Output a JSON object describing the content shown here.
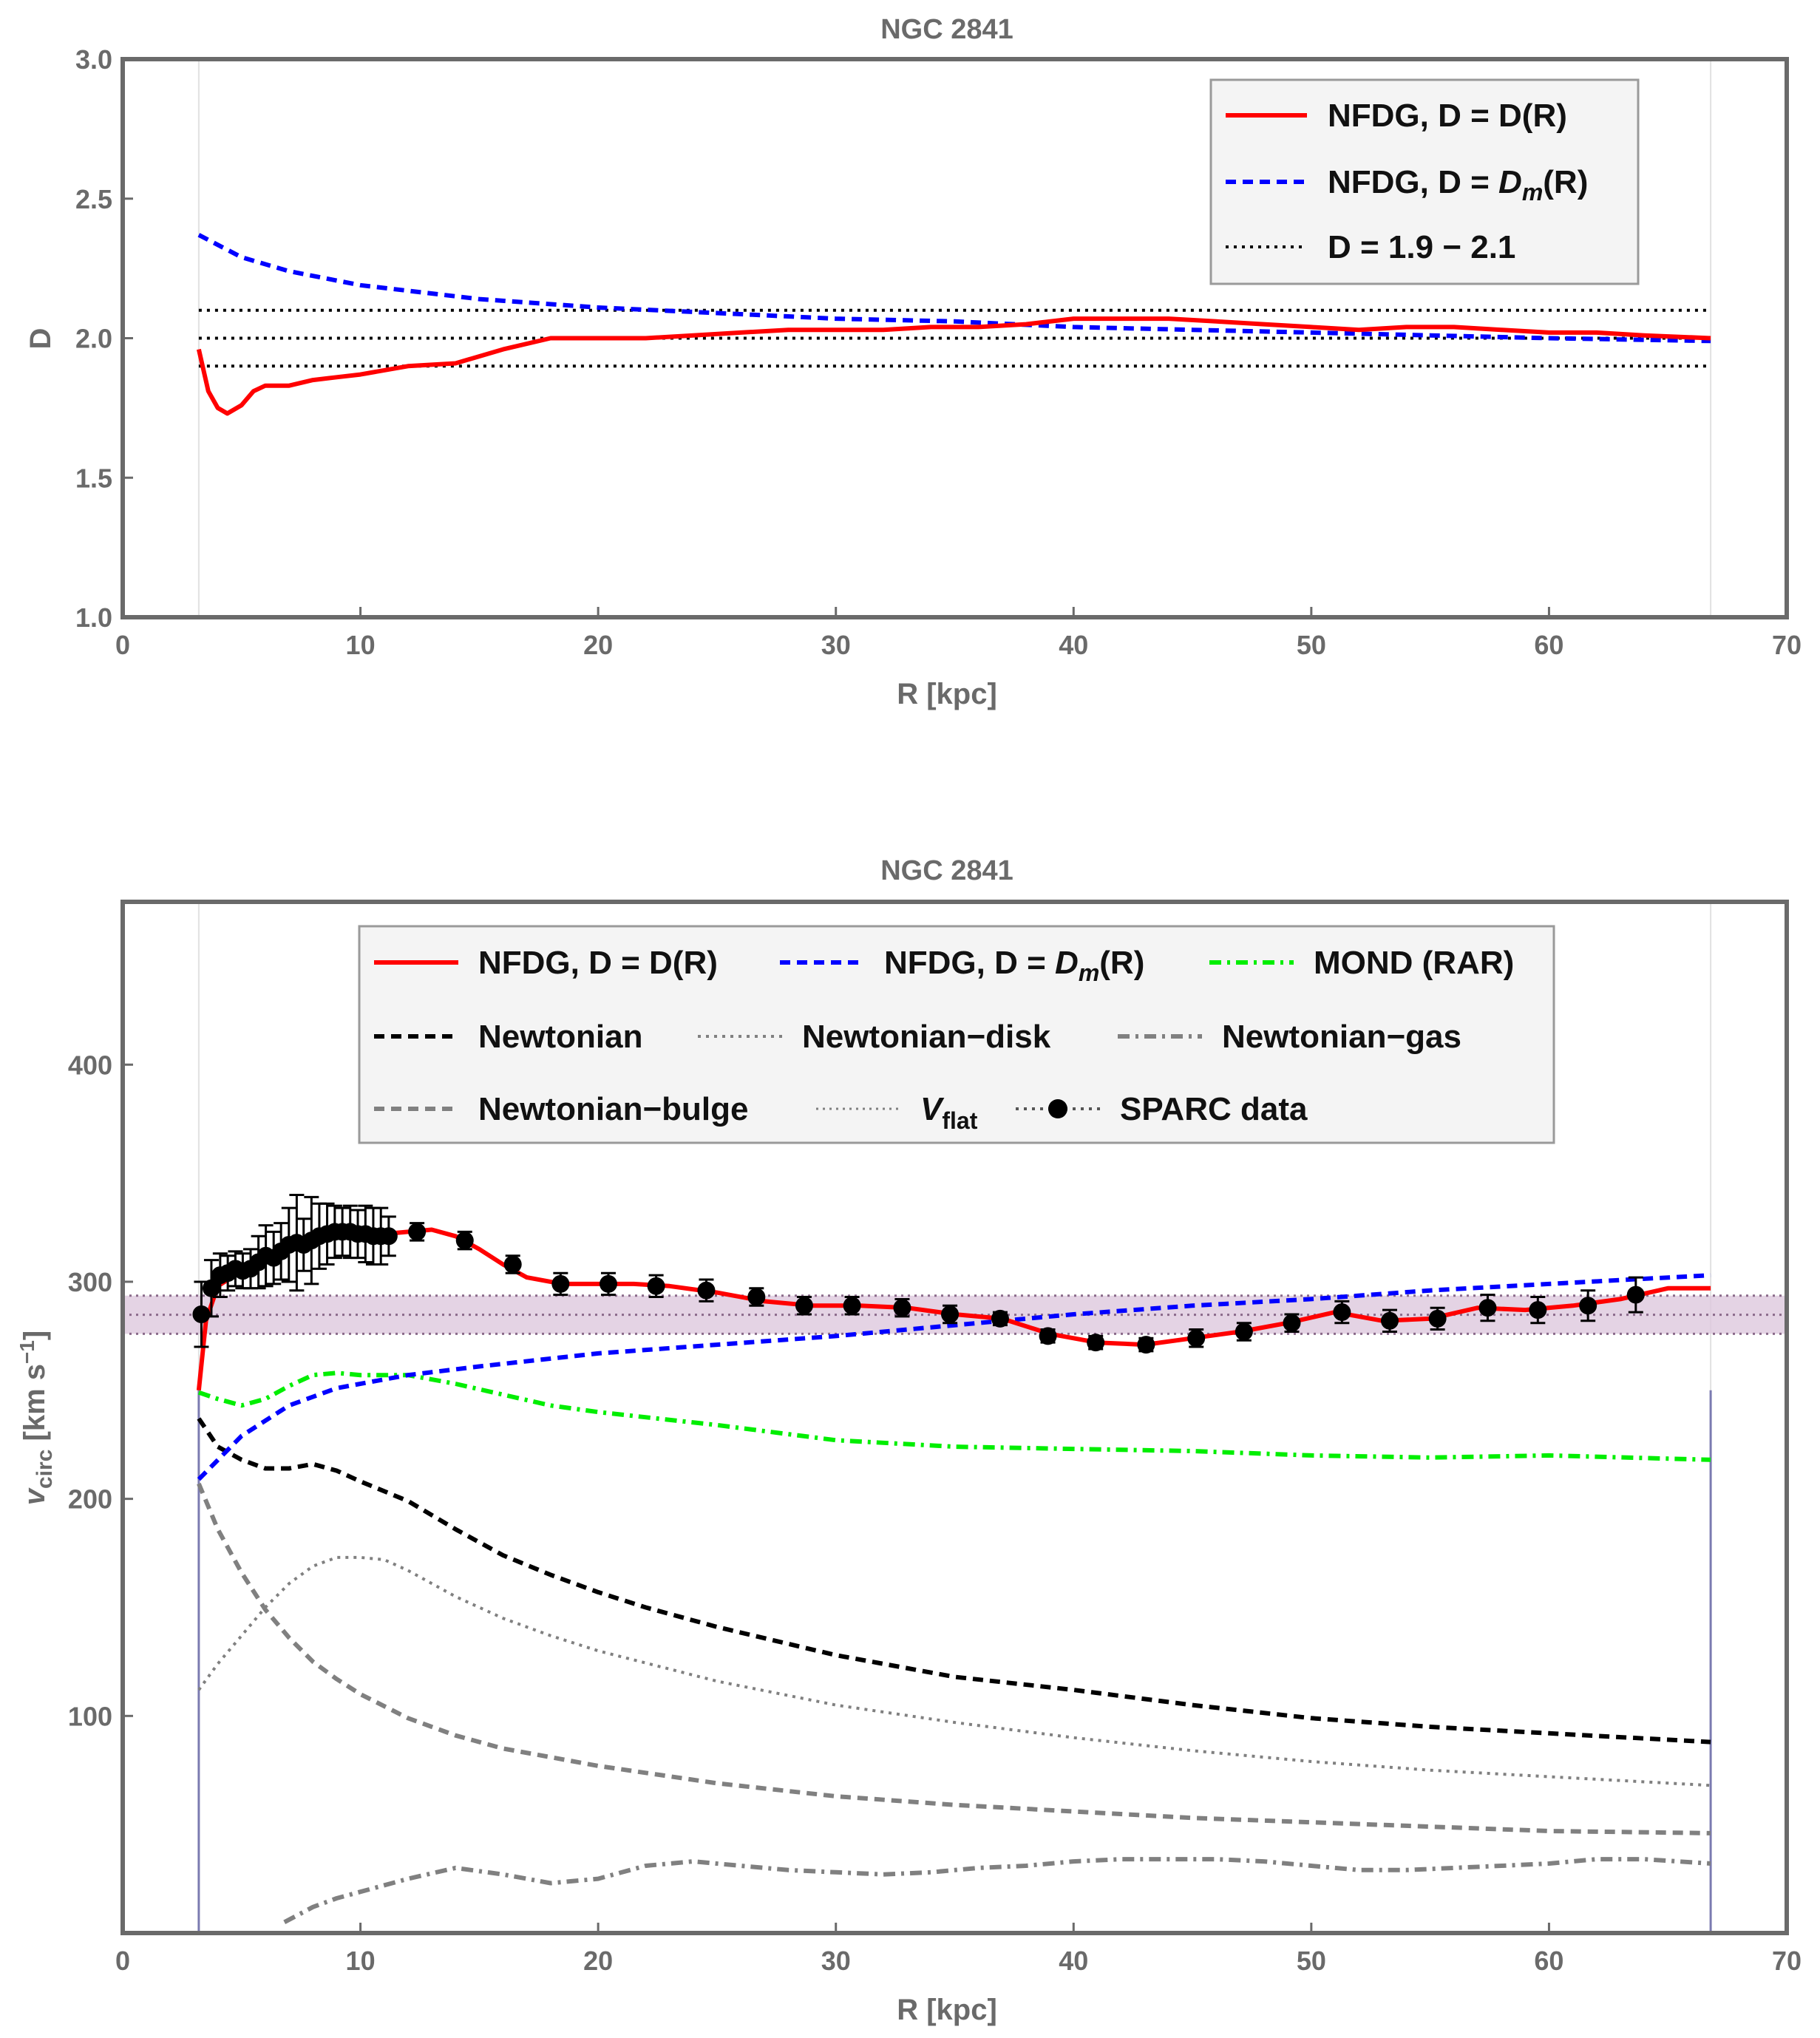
{
  "chart_data": [
    {
      "type": "line",
      "title": "NGC 2841",
      "xlabel": "R [kpc]",
      "ylabel": "D",
      "xlim": [
        0,
        70
      ],
      "ylim": [
        1.0,
        3.0
      ],
      "xticks": [
        "0",
        "10",
        "20",
        "30",
        "40",
        "50",
        "60",
        "70"
      ],
      "yticks": [
        "1.0",
        "1.5",
        "2.0",
        "2.5",
        "3.0"
      ],
      "grid": false,
      "legend_position": "top-right",
      "series": [
        {
          "name": "NFDG, D = D(R)",
          "style": "solid",
          "color": "#ff0000",
          "x": [
            3.2,
            3.6,
            4.0,
            4.4,
            5.0,
            5.5,
            6.0,
            7.0,
            8.0,
            9.0,
            10.0,
            12.0,
            14.0,
            16.0,
            18.0,
            20.0,
            22.0,
            24.0,
            26.0,
            28.0,
            30.0,
            32.0,
            34.0,
            36.0,
            38.0,
            40.0,
            42.0,
            44.0,
            46.0,
            48.0,
            50.0,
            52.0,
            54.0,
            56.0,
            58.0,
            60.0,
            62.0,
            64.0,
            66.8
          ],
          "y": [
            1.96,
            1.81,
            1.75,
            1.73,
            1.76,
            1.81,
            1.83,
            1.83,
            1.85,
            1.86,
            1.87,
            1.9,
            1.91,
            1.96,
            2.0,
            2.0,
            2.0,
            2.01,
            2.02,
            2.03,
            2.03,
            2.03,
            2.04,
            2.04,
            2.05,
            2.07,
            2.07,
            2.07,
            2.06,
            2.05,
            2.04,
            2.03,
            2.04,
            2.04,
            2.03,
            2.02,
            2.02,
            2.01,
            2.0
          ]
        },
        {
          "name": "NFDG, D = D_m(R)",
          "style": "dashed",
          "color": "#0000ff",
          "x": [
            3.2,
            5.0,
            7.0,
            10.0,
            15.0,
            20.0,
            25.0,
            30.0,
            35.0,
            40.0,
            45.0,
            50.0,
            55.0,
            60.0,
            66.8
          ],
          "y": [
            2.37,
            2.29,
            2.24,
            2.19,
            2.14,
            2.11,
            2.09,
            2.07,
            2.06,
            2.04,
            2.03,
            2.02,
            2.01,
            2.0,
            1.99
          ]
        },
        {
          "name": "D = 1.9 - 2.1",
          "style": "dotted",
          "color": "#000000",
          "lines": [
            1.9,
            2.0,
            2.1
          ],
          "x": [
            3.2,
            66.8
          ]
        }
      ],
      "legend_labels": [
        {
          "text": "NFDG, D = D(R)"
        },
        {
          "prefix": "NFDG, D = ",
          "sym": "D",
          "sub": "m",
          "suffix": "(R)"
        },
        {
          "text": "D = 1.9 − 2.1"
        }
      ]
    },
    {
      "type": "line",
      "title": "NGC 2841",
      "xlabel": "R [kpc]",
      "ylabel": "v_circ [km s^-1]",
      "ylabel_parts": {
        "sym": "v",
        "sub": "circ",
        "unit": " [km s",
        "sup": "−1",
        "close": "]"
      },
      "xlim": [
        0,
        70
      ],
      "ylim": [
        0,
        475
      ],
      "xticks": [
        "0",
        "10",
        "20",
        "30",
        "40",
        "50",
        "60",
        "70"
      ],
      "yticks": [
        "100",
        "200",
        "300",
        "400"
      ],
      "grid": false,
      "legend_position": "top",
      "vflat_band": {
        "center": 284.8,
        "low": 276.0,
        "high": 293.6
      },
      "series": [
        {
          "name": "NFDG, D = D(R)",
          "style": "solid",
          "color": "#ff0000",
          "x": [
            3.2,
            3.5,
            4.0,
            5.0,
            6.0,
            7.0,
            8.0,
            9.0,
            10.0,
            11.0,
            12.0,
            13.0,
            14.0,
            15.0,
            16.0,
            17.0,
            18.5,
            20.0,
            21.5,
            23.0,
            25.0,
            27.0,
            29.0,
            31.0,
            33.0,
            35.0,
            37.0,
            39.0,
            41.0,
            43.0,
            45.0,
            47.0,
            49.0,
            51.0,
            53.0,
            55.0,
            57.0,
            59.0,
            61.0,
            63.0,
            65.0,
            66.8
          ],
          "y": [
            250,
            282,
            298,
            305,
            310,
            316,
            320,
            322,
            321,
            322,
            323,
            324,
            321,
            315,
            308,
            302,
            299,
            299,
            299,
            298,
            295,
            291,
            289,
            289,
            288,
            285,
            283,
            276,
            272,
            271,
            274,
            277,
            281,
            286,
            282,
            283,
            288,
            287,
            289,
            292,
            297,
            297
          ]
        },
        {
          "name": "NFDG, D = D_m(R)",
          "style": "dashed",
          "color": "#0000ff",
          "x": [
            3.2,
            5.0,
            7.0,
            9.0,
            12.0,
            15.0,
            20.0,
            25.0,
            30.0,
            35.0,
            40.0,
            45.0,
            50.0,
            55.0,
            60.0,
            66.8
          ],
          "y": [
            209,
            229,
            243,
            251,
            257,
            261,
            267,
            271,
            275,
            280,
            285,
            289,
            292,
            296,
            299,
            303
          ]
        },
        {
          "name": "MOND (RAR)",
          "style": "dashdot",
          "color": "#00ee00",
          "x": [
            3.2,
            4.0,
            5.0,
            6.0,
            7.0,
            8.0,
            9.0,
            10.0,
            12.0,
            14.0,
            16.0,
            18.0,
            20.0,
            25.0,
            30.0,
            35.0,
            40.0,
            45.0,
            50.0,
            55.0,
            60.0,
            66.8
          ],
          "y": [
            249,
            246,
            243,
            246,
            252,
            257,
            258,
            257,
            257,
            253,
            248,
            243,
            240,
            234,
            227,
            224,
            223,
            222,
            220,
            219,
            220,
            218
          ]
        },
        {
          "name": "Newtonian",
          "style": "dashed",
          "color": "#000000",
          "x": [
            3.2,
            4.0,
            5.0,
            6.0,
            7.0,
            8.0,
            9.0,
            10.0,
            12.0,
            14.0,
            16.0,
            18.0,
            20.0,
            22.0,
            25.0,
            30.0,
            35.0,
            40.0,
            45.0,
            50.0,
            55.0,
            60.0,
            66.8
          ],
          "y": [
            237,
            224,
            218,
            214,
            214,
            216,
            213,
            208,
            199,
            186,
            174,
            165,
            157,
            150,
            141,
            128,
            118,
            112,
            105,
            99,
            95,
            92,
            88
          ]
        },
        {
          "name": "Newtonian-disk",
          "style": "dotted",
          "color": "#808080",
          "x": [
            3.2,
            4.0,
            5.0,
            6.0,
            7.0,
            8.0,
            9.0,
            10.0,
            11.0,
            12.0,
            14.0,
            16.0,
            18.0,
            20.0,
            25.0,
            30.0,
            35.0,
            40.0,
            45.0,
            50.0,
            55.0,
            60.0,
            66.8
          ],
          "y": [
            112,
            124,
            137,
            150,
            161,
            169,
            173,
            173,
            172,
            167,
            155,
            145,
            137,
            130,
            116,
            105,
            97,
            90,
            84,
            79,
            75,
            72,
            68
          ]
        },
        {
          "name": "Newtonian-gas",
          "style": "dashdot",
          "color": "#808080",
          "x": [
            6.8,
            8.0,
            9.0,
            10.0,
            12.0,
            14.0,
            16.0,
            18.0,
            20.0,
            22.0,
            24.0,
            26.0,
            28.0,
            30.0,
            32.0,
            34.0,
            36.0,
            38.0,
            40.0,
            42.0,
            44.0,
            46.0,
            48.0,
            50.0,
            52.0,
            54.0,
            56.0,
            58.0,
            60.0,
            62.0,
            64.0,
            66.8
          ],
          "y": [
            5,
            12,
            16,
            19,
            25,
            30,
            27,
            23,
            25,
            31,
            33,
            31,
            29,
            28,
            27,
            28,
            30,
            31,
            33,
            34,
            34,
            34,
            33,
            31,
            29,
            29,
            30,
            31,
            32,
            34,
            34,
            32
          ]
        },
        {
          "name": "Newtonian-bulge",
          "style": "dashed",
          "color": "#808080",
          "x": [
            3.2,
            4.0,
            5.0,
            6.0,
            7.0,
            8.0,
            9.0,
            10.0,
            12.0,
            14.0,
            16.0,
            18.0,
            20.0,
            25.0,
            30.0,
            35.0,
            40.0,
            45.0,
            50.0,
            55.0,
            60.0,
            66.8
          ],
          "y": [
            207,
            186,
            166,
            149,
            136,
            125,
            117,
            110,
            99,
            91,
            85,
            81,
            77,
            69,
            63,
            59,
            56,
            53,
            51,
            49,
            47,
            46
          ]
        }
      ],
      "sparc_data": {
        "name": "SPARC data",
        "r": [
          3.31,
          3.73,
          4.1,
          4.42,
          4.74,
          5.05,
          5.38,
          5.71,
          6.02,
          6.35,
          6.66,
          6.99,
          7.32,
          7.61,
          7.94,
          8.27,
          8.6,
          8.92,
          9.24,
          9.57,
          9.89,
          10.21,
          10.54,
          10.86,
          11.19,
          12.38,
          14.39,
          16.41,
          18.42,
          20.43,
          22.44,
          24.55,
          26.66,
          28.67,
          30.68,
          32.79,
          34.8,
          36.91,
          38.92,
          40.93,
          43.05,
          45.16,
          47.17,
          49.18,
          51.29,
          53.3,
          55.31,
          57.42,
          59.53,
          61.64,
          63.65
        ],
        "v": [
          285,
          297,
          303,
          304,
          306,
          305,
          306,
          309,
          312,
          311,
          314,
          317,
          318,
          317,
          319,
          321,
          322,
          323,
          323,
          323,
          322,
          322,
          321,
          321,
          321,
          323,
          319,
          308,
          299,
          299,
          298,
          296,
          293,
          289,
          289,
          288,
          285,
          283,
          275,
          272,
          271,
          274,
          277,
          281,
          286,
          282,
          283,
          288,
          287,
          289,
          294
        ],
        "err": [
          15,
          13,
          10,
          8,
          8,
          8,
          9,
          12,
          14,
          12,
          13,
          17,
          22,
          12,
          20,
          15,
          14,
          12,
          11,
          12,
          11,
          13,
          13,
          13,
          9,
          4,
          4,
          4,
          5,
          5,
          5,
          5,
          4,
          4,
          4,
          4,
          4,
          3,
          3,
          3,
          3,
          4,
          4,
          4,
          5,
          5,
          5,
          6,
          6,
          7,
          8
        ]
      },
      "legend_labels": [
        {
          "text": "NFDG, D = D(R)"
        },
        {
          "prefix": "NFDG, D = ",
          "sym": "D",
          "sub": "m",
          "suffix": "(R)"
        },
        {
          "text": "MOND (RAR)"
        },
        {
          "text": "Newtonian"
        },
        {
          "text": "Newtonian−disk"
        },
        {
          "text": "Newtonian−gas"
        },
        {
          "text": "Newtonian−bulge"
        },
        {
          "sym": "V",
          "sub": "flat"
        },
        {
          "text": "SPARC data"
        }
      ]
    }
  ]
}
